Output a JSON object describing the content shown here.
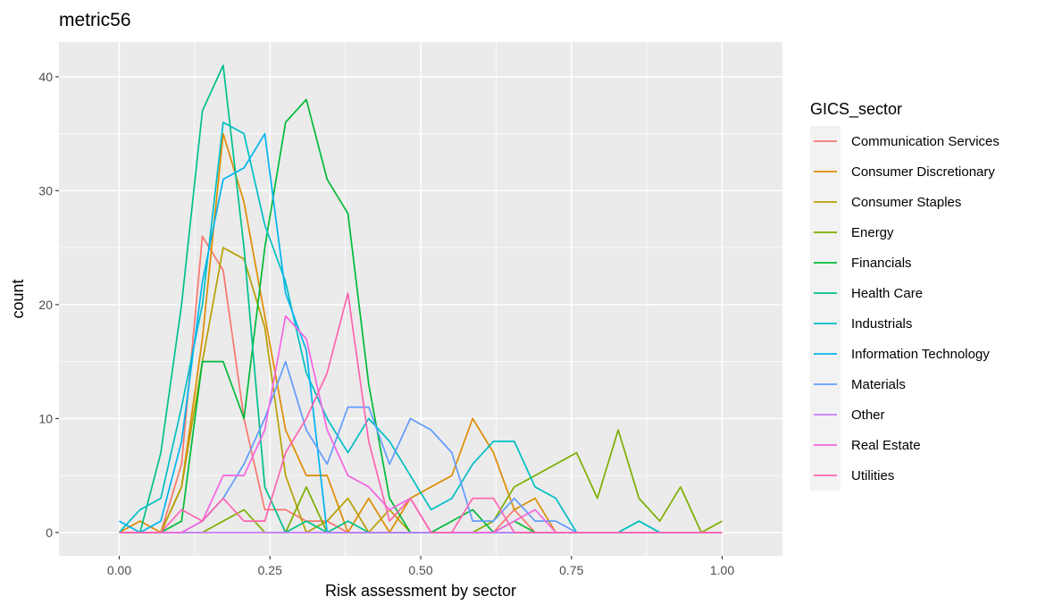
{
  "chart_data": {
    "type": "line",
    "title": "metric56",
    "xlabel": "Risk assessment by sector",
    "ylabel": "count",
    "xlim": [
      -0.1,
      1.1
    ],
    "ylim": [
      -2.05,
      43.05
    ],
    "x_ticks": [
      0.0,
      0.25,
      0.5,
      0.75,
      1.0
    ],
    "x_tick_labels": [
      "0.00",
      "0.25",
      "0.50",
      "0.75",
      "1.00"
    ],
    "y_ticks": [
      0,
      10,
      20,
      30,
      40
    ],
    "y_tick_labels": [
      "0",
      "10",
      "20",
      "30",
      "40"
    ],
    "grid": true,
    "legend_title": "GICS_sector",
    "legend_position": "right",
    "x": [
      0.0,
      0.0345,
      0.069,
      0.1034,
      0.1379,
      0.1724,
      0.2069,
      0.2414,
      0.2759,
      0.3103,
      0.3448,
      0.3793,
      0.4138,
      0.4483,
      0.4828,
      0.5172,
      0.5517,
      0.5862,
      0.6207,
      0.6552,
      0.6897,
      0.7241,
      0.7586,
      0.7931,
      0.8276,
      0.8621,
      0.8966,
      0.931,
      0.9655,
      1.0
    ],
    "series": [
      {
        "name": "Communication Services",
        "color": "#F8766D",
        "values": [
          0,
          0,
          0,
          6,
          26,
          23,
          10,
          2,
          2,
          1,
          1,
          0,
          0,
          0,
          0,
          0,
          0,
          0,
          0,
          2,
          0,
          0,
          0,
          0,
          0,
          0,
          0,
          0,
          0,
          0
        ]
      },
      {
        "name": "Consumer Discretionary",
        "color": "#DE8C00",
        "values": [
          0,
          1,
          0,
          4,
          17,
          35,
          29,
          19,
          9,
          5,
          5,
          0,
          3,
          0,
          3,
          4,
          5,
          10,
          7,
          2,
          3,
          0,
          0,
          0,
          0,
          0,
          0,
          0,
          0,
          0
        ]
      },
      {
        "name": "Consumer Staples",
        "color": "#B79F00",
        "values": [
          0,
          0,
          0,
          4,
          15,
          25,
          24,
          18,
          5,
          0,
          1,
          3,
          0,
          2,
          0,
          0,
          0,
          0,
          0,
          0,
          0,
          0,
          0,
          0,
          0,
          0,
          0,
          0,
          0,
          0
        ]
      },
      {
        "name": "Energy",
        "color": "#7CAE00",
        "values": [
          0,
          0,
          0,
          0,
          0,
          1,
          2,
          0,
          0,
          4,
          0,
          0,
          0,
          0,
          0,
          0,
          0,
          0,
          1,
          4,
          5,
          6,
          7,
          3,
          9,
          3,
          1,
          4,
          0,
          1
        ]
      },
      {
        "name": "Financials",
        "color": "#00BA38",
        "values": [
          0,
          0,
          0,
          1,
          15,
          15,
          10,
          25,
          36,
          38,
          31,
          28,
          13,
          3,
          0,
          0,
          1,
          2,
          0,
          1,
          0,
          0,
          0,
          0,
          0,
          0,
          0,
          0,
          0,
          0
        ]
      },
      {
        "name": "Health Care",
        "color": "#00C08B",
        "values": [
          0,
          0,
          7,
          20,
          37,
          41,
          25,
          4,
          0,
          1,
          0,
          1,
          0,
          0,
          0,
          0,
          0,
          0,
          0,
          0,
          0,
          0,
          0,
          0,
          0,
          1,
          0,
          0,
          0,
          0
        ]
      },
      {
        "name": "Industrials",
        "color": "#00BFC4",
        "values": [
          0,
          2,
          3,
          11,
          20,
          36,
          35,
          27,
          22,
          14,
          10,
          7,
          10,
          8,
          5,
          2,
          3,
          6,
          8,
          8,
          4,
          3,
          0,
          0,
          0,
          1,
          0,
          0,
          0,
          0
        ]
      },
      {
        "name": "Information Technology",
        "color": "#00B4F0",
        "values": [
          1,
          0,
          1,
          8,
          22,
          31,
          32,
          35,
          21,
          16,
          0,
          0,
          0,
          0,
          0,
          0,
          0,
          0,
          0,
          0,
          0,
          0,
          0,
          0,
          0,
          0,
          0,
          0,
          0,
          0
        ]
      },
      {
        "name": "Materials",
        "color": "#619CFF",
        "values": [
          0,
          0,
          0,
          0,
          1,
          3,
          6,
          10,
          15,
          9,
          6,
          11,
          11,
          6,
          10,
          9,
          7,
          1,
          1,
          3,
          1,
          1,
          0,
          0,
          0,
          0,
          0,
          0,
          0,
          0
        ]
      },
      {
        "name": "Other",
        "color": "#C77CFF",
        "values": [
          0,
          0,
          0,
          0,
          0,
          0,
          0,
          0,
          0,
          0,
          0,
          0,
          0,
          0,
          0,
          0,
          0,
          0,
          0,
          0,
          0,
          0,
          0,
          0,
          0,
          0,
          0,
          0,
          0,
          0
        ]
      },
      {
        "name": "Real Estate",
        "color": "#F564E3",
        "values": [
          0,
          0,
          0,
          0,
          1,
          5,
          5,
          9,
          19,
          17,
          9,
          5,
          4,
          2,
          3,
          0,
          0,
          0,
          0,
          1,
          2,
          0,
          0,
          0,
          0,
          0,
          0,
          0,
          0,
          0
        ]
      },
      {
        "name": "Utilities",
        "color": "#FF64B0",
        "values": [
          0,
          0,
          0,
          2,
          1,
          3,
          1,
          1,
          7,
          10,
          14,
          21,
          8,
          1,
          3,
          0,
          0,
          3,
          3,
          0,
          0,
          0,
          0,
          0,
          0,
          0,
          0,
          0,
          0,
          0
        ]
      }
    ]
  }
}
